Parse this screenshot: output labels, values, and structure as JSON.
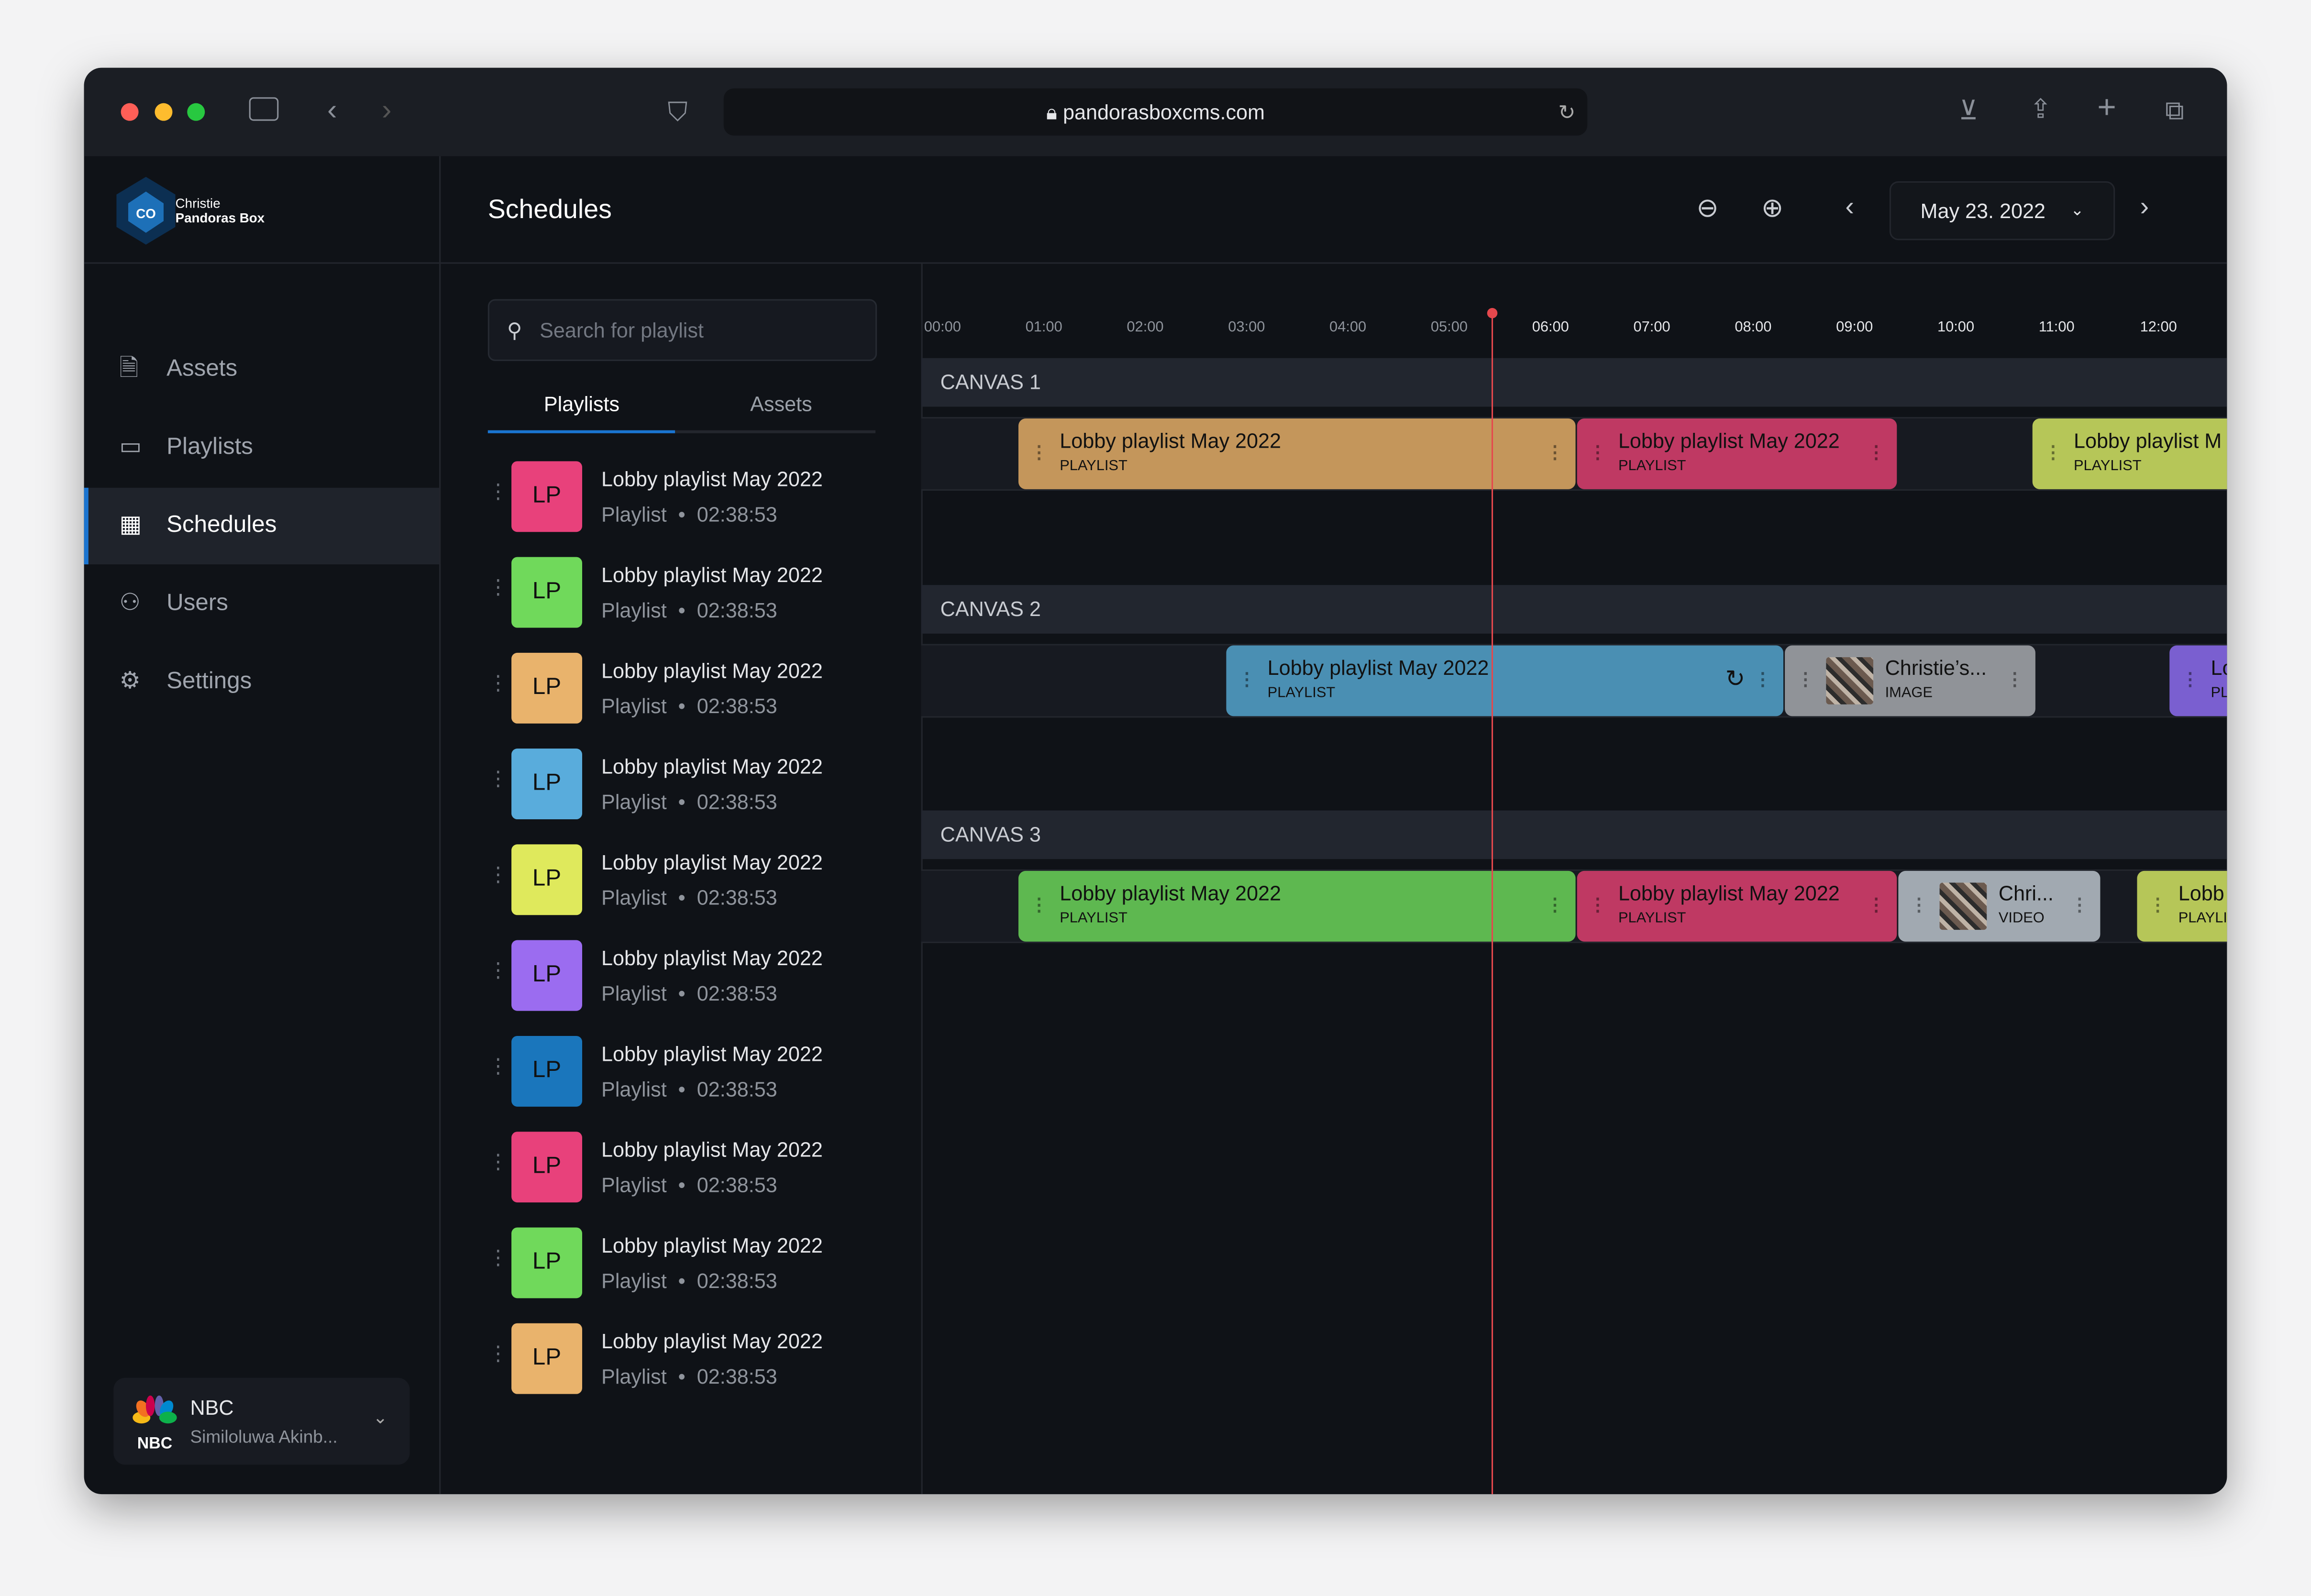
{
  "browser": {
    "url": "pandorasboxcms.com"
  },
  "brand": {
    "line1": "Christie",
    "line2": "Pandoras Box"
  },
  "sidebar": {
    "items": [
      {
        "label": "Assets",
        "icon": "file-icon"
      },
      {
        "label": "Playlists",
        "icon": "cast-icon"
      },
      {
        "label": "Schedules",
        "icon": "calendar-icon",
        "active": true
      },
      {
        "label": "Users",
        "icon": "users-icon"
      },
      {
        "label": "Settings",
        "icon": "gear-icon"
      }
    ]
  },
  "org": {
    "name": "NBC",
    "user": "Similoluwa Akinb...",
    "logo_text": "NBC"
  },
  "header": {
    "title": "Schedules",
    "date": "May 23. 2022"
  },
  "panel": {
    "search_placeholder": "Search for playlist",
    "tabs": [
      "Playlists",
      "Assets"
    ],
    "items": [
      {
        "initials": "LP",
        "title": "Lobby playlist May 2022",
        "type": "Playlist",
        "duration": "02:38:53",
        "color": "#e8417b"
      },
      {
        "initials": "LP",
        "title": "Lobby playlist May 2022",
        "type": "Playlist",
        "duration": "02:38:53",
        "color": "#70d95b"
      },
      {
        "initials": "LP",
        "title": "Lobby playlist May 2022",
        "type": "Playlist",
        "duration": "02:38:53",
        "color": "#e9b36c"
      },
      {
        "initials": "LP",
        "title": "Lobby playlist May 2022",
        "type": "Playlist",
        "duration": "02:38:53",
        "color": "#59acdc"
      },
      {
        "initials": "LP",
        "title": "Lobby playlist May 2022",
        "type": "Playlist",
        "duration": "02:38:53",
        "color": "#dfe95c"
      },
      {
        "initials": "LP",
        "title": "Lobby playlist May 2022",
        "type": "Playlist",
        "duration": "02:38:53",
        "color": "#9b6cf0"
      },
      {
        "initials": "LP",
        "title": "Lobby playlist May 2022",
        "type": "Playlist",
        "duration": "02:38:53",
        "color": "#1a76bc"
      },
      {
        "initials": "LP",
        "title": "Lobby playlist May 2022",
        "type": "Playlist",
        "duration": "02:38:53",
        "color": "#e8417b"
      },
      {
        "initials": "LP",
        "title": "Lobby playlist May 2022",
        "type": "Playlist",
        "duration": "02:38:53",
        "color": "#70d95b"
      },
      {
        "initials": "LP",
        "title": "Lobby playlist May 2022",
        "type": "Playlist",
        "duration": "02:38:53",
        "color": "#e9b36c"
      }
    ]
  },
  "timeline": {
    "hours": [
      "00:00",
      "01:00",
      "02:00",
      "03:00",
      "04:00",
      "05:00",
      "06:00",
      "07:00",
      "08:00",
      "09:00",
      "10:00",
      "11:00",
      "12:00"
    ],
    "canvases": [
      {
        "name": "CANVAS 1",
        "blocks": [
          {
            "title": "Lobby playlist May 2022",
            "type": "PLAYLIST",
            "color": "#c4965b"
          },
          {
            "title": "Lobby playlist May 2022",
            "type": "PLAYLIST",
            "color": "#bf3963"
          },
          {
            "title": "Lobby playlist M",
            "type": "PLAYLIST",
            "color": "#b6c658"
          }
        ]
      },
      {
        "name": "CANVAS 2",
        "blocks": [
          {
            "title": "Lobby playlist May 2022",
            "type": "PLAYLIST",
            "color": "#4a8fb3",
            "repeat": true
          },
          {
            "title": "Christie’s...",
            "type": "IMAGE",
            "color": "#909398",
            "thumb": true
          },
          {
            "title": "Lo",
            "type": "PL",
            "color": "#7a5fd0"
          }
        ]
      },
      {
        "name": "CANVAS 3",
        "blocks": [
          {
            "title": "Lobby playlist May 2022",
            "type": "PLAYLIST",
            "color": "#5eb850"
          },
          {
            "title": "Lobby playlist May 2022",
            "type": "PLAYLIST",
            "color": "#bf3963"
          },
          {
            "title": "Chri...",
            "type": "VIDEO",
            "color": "#a1a9b1",
            "thumb": true
          },
          {
            "title": "Lobb",
            "type": "PLAYLI",
            "color": "#b6c658"
          }
        ]
      }
    ]
  }
}
